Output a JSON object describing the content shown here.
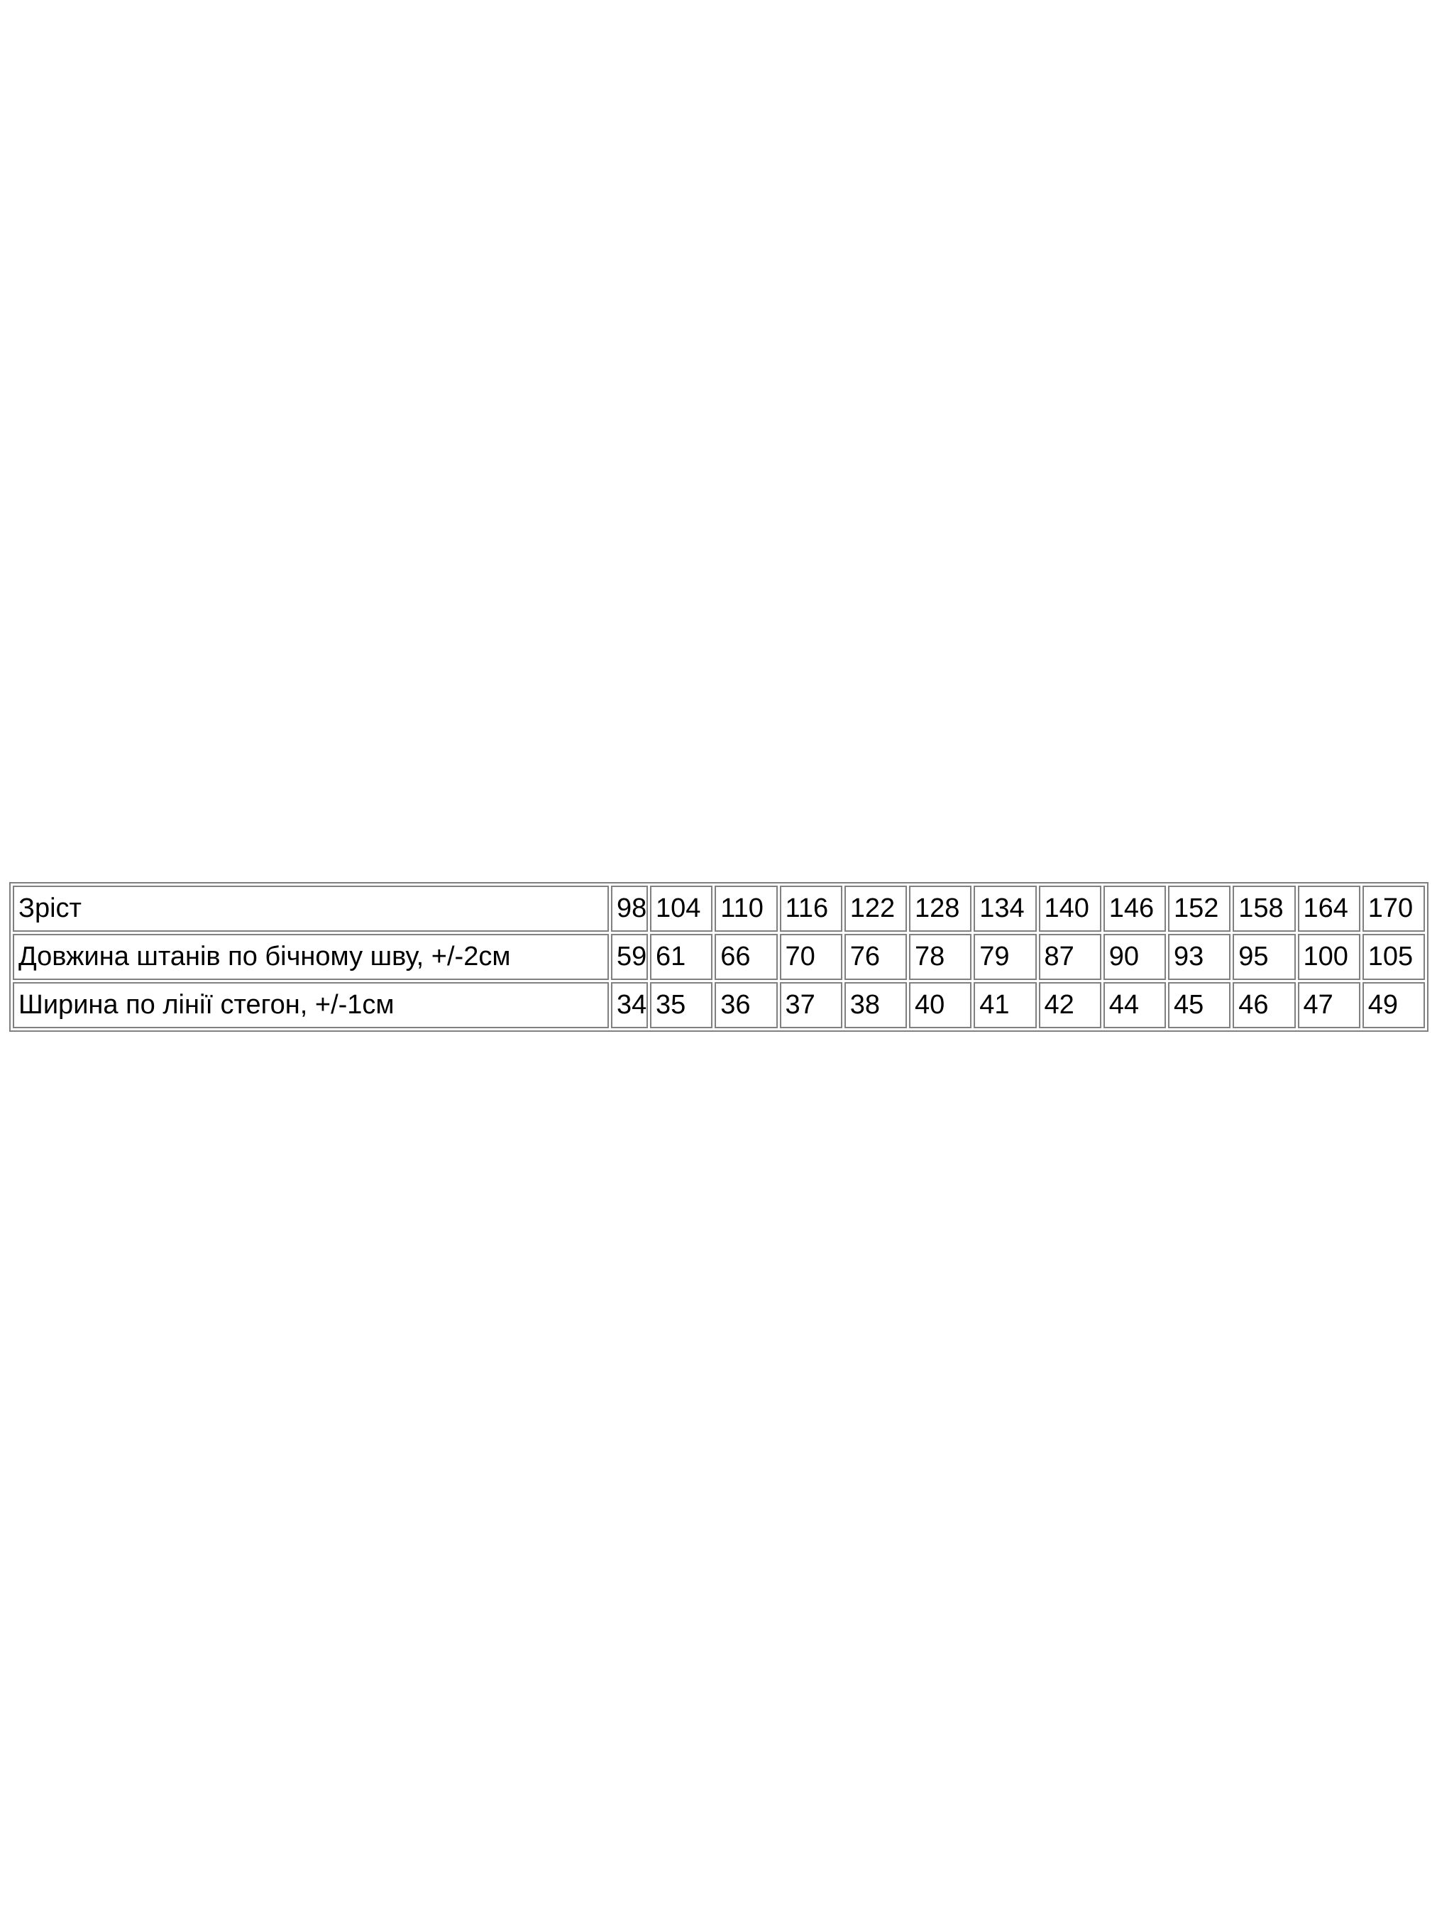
{
  "colors": {
    "page_background": "#ffffff",
    "table_border": "#808080",
    "text": "#000000"
  },
  "chart_data": {
    "type": "table",
    "title": "",
    "row_labels": [
      "Зріст",
      "Довжина штанів по бічному шву, +/-2см",
      "Ширина по лінії стегон, +/-1см"
    ],
    "rows": [
      {
        "label": "Зріст",
        "values": [
          98,
          104,
          110,
          116,
          122,
          128,
          134,
          140,
          146,
          152,
          158,
          164,
          170
        ]
      },
      {
        "label": "Довжина штанів по бічному шву, +/-2см",
        "values": [
          59,
          61,
          66,
          70,
          76,
          78,
          79,
          87,
          90,
          93,
          95,
          100,
          105
        ]
      },
      {
        "label": "Ширина по лінії стегон, +/-1см",
        "values": [
          34,
          35,
          36,
          37,
          38,
          40,
          41,
          42,
          44,
          45,
          46,
          47,
          49
        ]
      }
    ]
  }
}
